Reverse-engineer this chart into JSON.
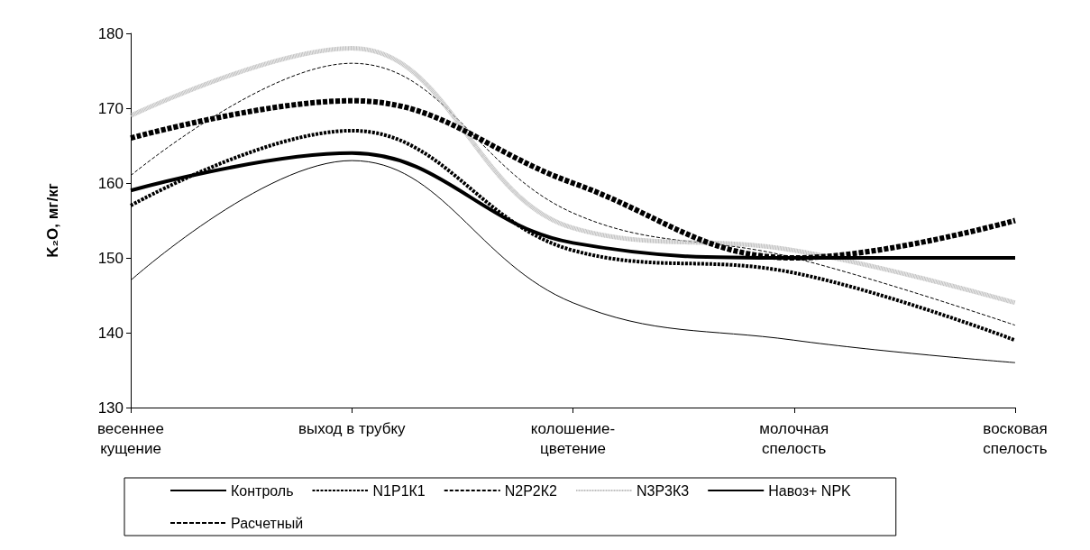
{
  "chart_data": {
    "type": "line",
    "ylabel": "K₂O, мг/кг",
    "categories": [
      "весеннее\nкущение",
      "выход в трубку",
      "колошение-\nцветение",
      "молочная\nспелость",
      "восковая\nспелость"
    ],
    "ylim": [
      130,
      180
    ],
    "yticks": [
      130,
      140,
      150,
      160,
      170,
      180
    ],
    "grid": false,
    "legend": "bottom",
    "marker": "none",
    "series": [
      {
        "name": "Контроль",
        "color": "#000000",
        "line_style": "solid",
        "values": [
          147,
          163,
          144,
          139,
          136
        ]
      },
      {
        "name": "N1P1К1",
        "color": "#000000",
        "line_style": "dashed",
        "values": [
          157,
          167,
          151,
          148,
          139
        ]
      },
      {
        "name": "N2P2К2",
        "color": "#000000",
        "line_style": "dashed",
        "values": [
          161,
          176,
          156,
          150,
          141
        ]
      },
      {
        "name": "N3P3К3",
        "color": "#c0c0c0",
        "line_style": "dotted",
        "values": [
          169,
          178,
          154,
          151,
          144
        ]
      },
      {
        "name": "Навоз+ NPK",
        "color": "#000000",
        "line_style": "solid",
        "values": [
          159,
          164,
          152,
          150,
          150
        ]
      },
      {
        "name": "Расчетный",
        "color": "#000000",
        "line_style": "dashed",
        "values": [
          166,
          171,
          160,
          150,
          155
        ]
      }
    ]
  }
}
